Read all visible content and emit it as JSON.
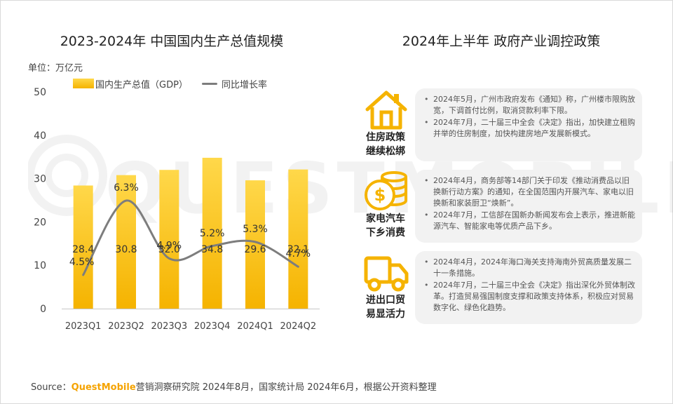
{
  "left": {
    "title": "2023-2024年 中国国内生产总值规模",
    "unit": "单位：万亿元",
    "legend": {
      "bar": "国内生产总值（GDP）",
      "line": "同比增长率"
    }
  },
  "chart_data": {
    "type": "bar",
    "categories": [
      "2023Q1",
      "2023Q2",
      "2023Q3",
      "2023Q4",
      "2024Q1",
      "2024Q2"
    ],
    "series": [
      {
        "name": "国内生产总值（GDP）",
        "type": "bar",
        "values": [
          28.4,
          30.8,
          32.0,
          34.8,
          29.6,
          32.1
        ],
        "labels": [
          "28.4",
          "30.8",
          "32.0",
          "34.8",
          "29.6",
          "32.1"
        ]
      },
      {
        "name": "同比增长率",
        "type": "line",
        "values": [
          4.5,
          6.3,
          4.9,
          5.2,
          5.3,
          4.7
        ],
        "labels": [
          "4.5%",
          "6.3%",
          "4.9%",
          "5.2%",
          "5.3%",
          "4.7%"
        ]
      }
    ],
    "ylim": [
      0,
      50
    ],
    "yticks": [
      "0",
      "10",
      "20",
      "30",
      "40",
      "50"
    ],
    "legend_position": "top",
    "grid": false,
    "colors": {
      "bar_top": "#ffd84a",
      "bar_bottom": "#f5b300",
      "line": "#7d7d7d",
      "axis": "#c8c8c8"
    }
  },
  "right": {
    "title": "2024年上半年 政府产业调控政策",
    "policies": [
      {
        "icon": "house-icon",
        "label_lines": [
          "住房政策",
          "继续松绑"
        ],
        "items": [
          "2024年5月，广州市政府发布《通知》称，广州楼市限购放宽，下调首付比例，取消贷款利率下限。",
          "2024年7月，二十届三中全会《决定》指出，加快建立租购并举的住房制度，加快构建房地产发展新模式。"
        ]
      },
      {
        "icon": "coins-icon",
        "label_lines": [
          "家电汽车",
          "下乡消费"
        ],
        "items": [
          "2024年4月，商务部等14部门关于印发《推动消费品以旧换新行动方案》的通知，在全国范围内开展汽车、家电以旧换新和家装厨卫“焕新”。",
          "2024年7月，工信部在国新办新闻发布会上表示，推进新能源汽车、智能家电等优质产品下乡。"
        ]
      },
      {
        "icon": "truck-icon",
        "label_lines": [
          "进出口贸",
          "易显活力"
        ],
        "items": [
          "2024年4月，2024年海口海关支持海南外贸高质量发展二十一条措施。",
          "2024年7月，二十届三中全会《决定》指出深化外贸体制改革。打造贸易强国制度支撑和政策支持体系，积极应对贸易数字化、绿色化趋势。"
        ]
      }
    ]
  },
  "source": {
    "prefix": "Source：",
    "brand": "QuestMobile",
    "text": "营销洞察研究院 2024年8月，国家统计局 2024年6月，根据公开资料整理"
  },
  "watermark": {
    "text": "QUESTMOBILE"
  },
  "colors": {
    "accent": "#f5b300",
    "brand": "#f5a300",
    "card_bg": "#f2f2f2"
  }
}
